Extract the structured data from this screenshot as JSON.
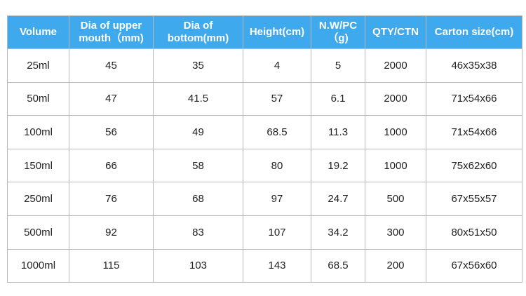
{
  "table": {
    "header": [
      [
        "Volume"
      ],
      [
        "Dia of upper",
        "mouth（mm)"
      ],
      [
        "Dia of",
        "bottom(mm)"
      ],
      [
        "Height(cm)"
      ],
      [
        "N.W/PC",
        "（g)"
      ],
      [
        "QTY/CTN"
      ],
      [
        "Carton size(cm)"
      ]
    ],
    "rows": [
      [
        "25ml",
        45,
        35,
        4,
        5,
        2000,
        "46x35x38"
      ],
      [
        "50ml",
        47,
        41.5,
        57,
        6.1,
        2000,
        "71x54x66"
      ],
      [
        "100ml",
        56,
        49,
        68.5,
        11.3,
        1000,
        "71x54x66"
      ],
      [
        "150ml",
        66,
        58,
        80,
        19.2,
        1000,
        "75x62x60"
      ],
      [
        "250ml",
        76,
        68,
        97,
        24.7,
        500,
        "67x55x57"
      ],
      [
        "500ml",
        92,
        83,
        107,
        34.2,
        300,
        "80x51x50"
      ],
      [
        "1000ml",
        115,
        103,
        143,
        68.5,
        200,
        "67x56x60"
      ]
    ]
  }
}
